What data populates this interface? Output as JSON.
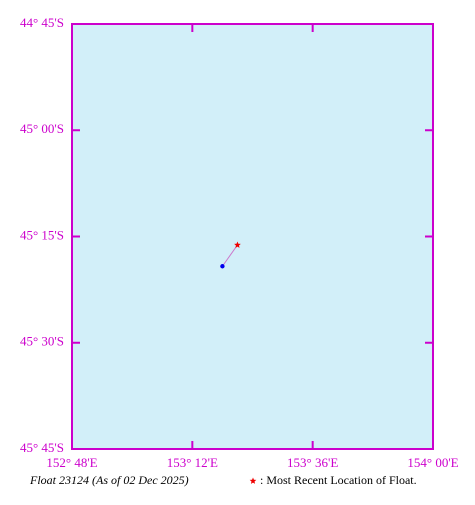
{
  "chart_data": {
    "type": "line",
    "title": "Float 23124 (As of 02 Dec 2025)",
    "legend_text": ": Most Recent Location of Float.",
    "background": "#d2eff9",
    "axis_color": "#cc00cc",
    "xlim": [
      152.8,
      154.0
    ],
    "xticks": [
      {
        "value": 152.8,
        "label": "152° 48'E"
      },
      {
        "value": 153.2,
        "label": "153° 12'E"
      },
      {
        "value": 153.6,
        "label": "153° 36'E"
      },
      {
        "value": 154.0,
        "label": "154° 00'E"
      }
    ],
    "ylim": [
      -45.75,
      -44.75
    ],
    "yticks": [
      {
        "value": -44.75,
        "label": "44° 45'S"
      },
      {
        "value": -45.0,
        "label": "45° 00'S"
      },
      {
        "value": -45.25,
        "label": "45° 15'S"
      },
      {
        "value": -45.5,
        "label": "45° 30'S"
      },
      {
        "value": -45.75,
        "label": "45° 45'S"
      }
    ],
    "series": [
      {
        "color": "#cc77cc",
        "start_color": "#0000ee",
        "end_color": "#ee0000",
        "x": [
          153.3,
          153.35
        ],
        "values": [
          -45.32,
          -45.27
        ]
      }
    ]
  }
}
